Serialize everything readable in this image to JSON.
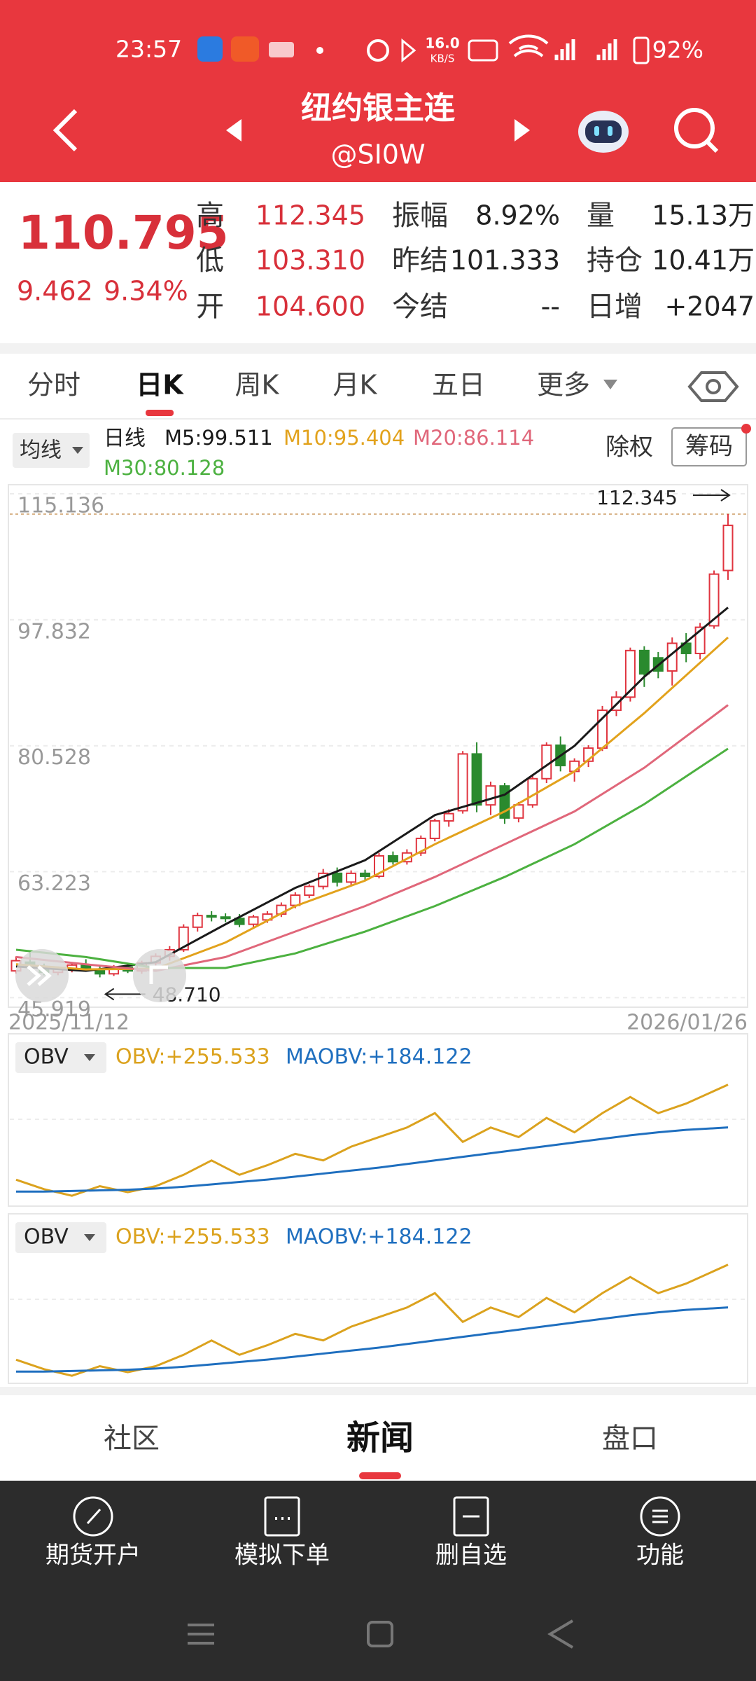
{
  "status_bar": {
    "time": "23:57",
    "net_speed": "16.0",
    "net_unit": "KB/S",
    "battery": "92%"
  },
  "header": {
    "title": "纽约银主连",
    "symbol": "@SI0W"
  },
  "quote": {
    "price": "110.795",
    "change": "9.462",
    "change_pct": "9.34%",
    "fields": [
      {
        "label": "高",
        "value": "112.345"
      },
      {
        "label": "振幅",
        "value": "8.92%"
      },
      {
        "label": "量",
        "value": "15.13万"
      },
      {
        "label": "低",
        "value": "103.310"
      },
      {
        "label": "昨结",
        "value": "101.333"
      },
      {
        "label": "持仓",
        "value": "10.41万"
      },
      {
        "label": "开",
        "value": "104.600"
      },
      {
        "label": "今结",
        "value": "--"
      },
      {
        "label": "日增",
        "value": "+2047"
      }
    ]
  },
  "tabs": {
    "items": [
      "分时",
      "日K",
      "周K",
      "月K",
      "五日",
      "更多"
    ],
    "active": 1
  },
  "ma_bar": {
    "selector": "均线",
    "period": "日线",
    "buttons": [
      "除权",
      "筹码"
    ]
  },
  "chart_data": {
    "type": "candlestick",
    "x_start_label": "2025/11/12",
    "x_end_label": "2026/01/26",
    "ylim": [
      44.9,
      116
    ],
    "yticks": [
      45.919,
      63.223,
      80.528,
      97.832,
      115.136
    ],
    "grid": true,
    "up_color": "#e0343f",
    "down_color": "#2a8a2e",
    "open": [
      49.6,
      50.8,
      50.1,
      49.4,
      49.9,
      50.4,
      49.8,
      49.2,
      50.1,
      49.6,
      50.7,
      51.6,
      52.5,
      55.6,
      57.2,
      57.0,
      56.8,
      56.0,
      56.6,
      57.4,
      58.6,
      60.0,
      61.2,
      63.0,
      61.8,
      63.0,
      62.6,
      65.4,
      64.6,
      65.8,
      67.8,
      70.2,
      71.6,
      79.4,
      72.4,
      75.0,
      70.6,
      72.4,
      76.0,
      80.6,
      77.0,
      78.4,
      80.2,
      85.4,
      87.2,
      93.6,
      92.6,
      90.8,
      94.6,
      93.2,
      97.0,
      104.6
    ],
    "high": [
      51.6,
      52.4,
      50.6,
      50.2,
      50.8,
      51.2,
      50.3,
      50.4,
      50.6,
      51.0,
      52.0,
      53.0,
      56.0,
      57.6,
      57.8,
      57.5,
      57.4,
      57.3,
      57.8,
      59.0,
      60.4,
      61.5,
      63.6,
      63.8,
      63.4,
      63.5,
      65.8,
      66.0,
      66.3,
      68.2,
      70.5,
      71.8,
      79.8,
      81.0,
      75.6,
      75.4,
      72.8,
      76.6,
      81.0,
      81.8,
      78.8,
      80.6,
      86.0,
      88.0,
      94.0,
      94.2,
      93.4,
      95.4,
      96.0,
      97.4,
      104.6,
      112.345
    ],
    "low": [
      49.2,
      49.6,
      49.0,
      49.0,
      49.4,
      49.6,
      48.71,
      48.9,
      49.3,
      49.2,
      50.2,
      51.0,
      52.2,
      55.0,
      56.4,
      56.3,
      55.6,
      55.6,
      56.2,
      57.0,
      58.2,
      59.6,
      60.8,
      61.2,
      61.4,
      62.0,
      62.3,
      64.2,
      64.2,
      65.4,
      67.4,
      69.4,
      71.2,
      71.4,
      71.0,
      69.8,
      70.0,
      72.0,
      75.4,
      77.0,
      75.6,
      77.6,
      79.8,
      84.6,
      86.6,
      88.6,
      89.8,
      88.8,
      92.0,
      92.4,
      96.6,
      103.31
    ],
    "close": [
      51.0,
      50.1,
      49.4,
      49.9,
      50.4,
      49.8,
      49.2,
      50.1,
      49.6,
      50.7,
      51.6,
      52.5,
      55.6,
      57.2,
      57.0,
      56.8,
      56.0,
      57.0,
      57.4,
      58.6,
      60.0,
      61.2,
      63.0,
      61.8,
      63.0,
      62.6,
      65.4,
      64.6,
      65.8,
      67.8,
      70.2,
      71.2,
      79.4,
      72.4,
      75.0,
      70.6,
      72.4,
      76.0,
      80.6,
      77.8,
      78.4,
      80.2,
      85.4,
      87.2,
      93.6,
      90.4,
      90.8,
      94.6,
      93.2,
      96.8,
      104.1,
      110.795
    ],
    "high_marker": 112.345,
    "low_marker": {
      "value": 48.71,
      "label": "48.710"
    },
    "series": [
      {
        "label": "M5:99.511",
        "color": "#1a1a1a",
        "x": [
          0,
          5,
          10,
          15,
          20,
          25,
          30,
          35,
          40,
          45,
          51
        ],
        "values": [
          50.2,
          49.6,
          50.8,
          56.0,
          61.0,
          64.8,
          71.0,
          73.8,
          80.5,
          90.0,
          99.511
        ]
      },
      {
        "label": "M10:95.404",
        "color": "#e2a21c",
        "x": [
          0,
          5,
          10,
          15,
          20,
          25,
          30,
          35,
          40,
          45,
          51
        ],
        "values": [
          50.5,
          49.8,
          49.9,
          53.5,
          58.5,
          62.0,
          67.0,
          71.5,
          77.0,
          85.0,
          95.404
        ]
      },
      {
        "label": "M20:86.114",
        "color": "#e0677a",
        "x": [
          0,
          5,
          10,
          15,
          20,
          25,
          30,
          35,
          40,
          45,
          51
        ],
        "values": [
          51.5,
          50.5,
          49.6,
          51.5,
          55.0,
          58.5,
          62.5,
          67.0,
          71.5,
          77.5,
          86.114
        ]
      },
      {
        "label": "M30:80.128",
        "color": "#4cb140",
        "x": [
          0,
          5,
          10,
          15,
          20,
          25,
          30,
          35,
          40,
          45,
          51
        ],
        "values": [
          52.5,
          51.5,
          50.0,
          50.0,
          52.0,
          55.0,
          58.5,
          62.5,
          67.0,
          72.5,
          80.128
        ]
      }
    ]
  },
  "indicator": {
    "type": "line",
    "selector": "OBV",
    "ylim": [
      55,
      275
    ],
    "series": [
      {
        "label": "OBV:+255.533",
        "color": "#dba21e",
        "x": [
          0,
          2,
          4,
          6,
          8,
          10,
          12,
          14,
          16,
          18,
          20,
          22,
          24,
          26,
          28,
          30,
          32,
          34,
          36,
          38,
          40,
          42,
          44,
          46,
          48,
          51
        ],
        "values": [
          96.8,
          81,
          70,
          86,
          76,
          86,
          105,
          129,
          105,
          121,
          140,
          129,
          152,
          168,
          184,
          208,
          160,
          184,
          168,
          200,
          176,
          208,
          235,
          208,
          224,
          255.533
        ]
      },
      {
        "label": "MAOBV:+184.122",
        "color": "#1f6fbf",
        "x": [
          0,
          2,
          4,
          6,
          8,
          10,
          12,
          14,
          16,
          18,
          20,
          22,
          24,
          26,
          28,
          30,
          32,
          34,
          36,
          38,
          40,
          42,
          44,
          46,
          48,
          51
        ],
        "values": [
          77,
          77,
          78,
          79,
          80,
          82,
          85,
          89,
          93,
          97,
          102,
          107,
          112,
          117,
          123,
          129,
          135,
          141,
          147,
          153,
          159,
          165,
          171,
          176,
          180,
          184.122
        ]
      }
    ]
  },
  "bottom_tabs": {
    "items": [
      "社区",
      "新闻",
      "盘口"
    ],
    "active": 1
  },
  "toolbar": [
    "期货开户",
    "模拟下单",
    "删自选",
    "功能"
  ]
}
